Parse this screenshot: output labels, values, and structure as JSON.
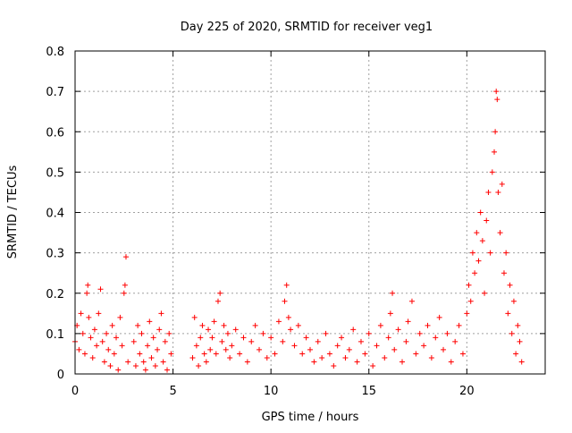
{
  "chart_data": {
    "type": "scatter",
    "title": "Day 225 of 2020, SRMTID for receiver veg1",
    "xlabel": "GPS time / hours",
    "ylabel": "SRMTID / TECUs",
    "xlim": [
      0,
      24
    ],
    "ylim": [
      0,
      0.8
    ],
    "xticks": [
      0,
      5,
      10,
      15,
      20
    ],
    "xtick_labels": [
      "0",
      "5",
      "10",
      "15",
      "20"
    ],
    "yticks": [
      0,
      0.1,
      0.2,
      0.3,
      0.4,
      0.5,
      0.6,
      0.7,
      0.8
    ],
    "ytick_labels": [
      "0",
      "0.1",
      "0.2",
      "0.3",
      "0.4",
      "0.5",
      "0.6",
      "0.7",
      "0.8"
    ],
    "grid": true,
    "marker": "plus",
    "color": "#ff0000",
    "series": [
      {
        "name": "veg1",
        "points": [
          [
            0.0,
            0.08
          ],
          [
            0.1,
            0.12
          ],
          [
            0.2,
            0.06
          ],
          [
            0.3,
            0.15
          ],
          [
            0.4,
            0.1
          ],
          [
            0.5,
            0.05
          ],
          [
            0.6,
            0.2
          ],
          [
            0.65,
            0.22
          ],
          [
            0.7,
            0.14
          ],
          [
            0.8,
            0.09
          ],
          [
            0.9,
            0.04
          ],
          [
            1.0,
            0.11
          ],
          [
            1.1,
            0.07
          ],
          [
            1.2,
            0.15
          ],
          [
            1.3,
            0.21
          ],
          [
            1.4,
            0.08
          ],
          [
            1.5,
            0.03
          ],
          [
            1.6,
            0.1
          ],
          [
            1.7,
            0.06
          ],
          [
            1.8,
            0.02
          ],
          [
            1.9,
            0.12
          ],
          [
            2.0,
            0.05
          ],
          [
            2.1,
            0.09
          ],
          [
            2.2,
            0.01
          ],
          [
            2.3,
            0.14
          ],
          [
            2.4,
            0.07
          ],
          [
            2.5,
            0.2
          ],
          [
            2.55,
            0.22
          ],
          [
            2.6,
            0.29
          ],
          [
            2.7,
            0.03
          ],
          [
            3.0,
            0.08
          ],
          [
            3.1,
            0.02
          ],
          [
            3.2,
            0.12
          ],
          [
            3.3,
            0.05
          ],
          [
            3.4,
            0.1
          ],
          [
            3.5,
            0.03
          ],
          [
            3.6,
            0.01
          ],
          [
            3.7,
            0.07
          ],
          [
            3.8,
            0.13
          ],
          [
            3.9,
            0.04
          ],
          [
            4.0,
            0.09
          ],
          [
            4.1,
            0.02
          ],
          [
            4.2,
            0.06
          ],
          [
            4.3,
            0.11
          ],
          [
            4.4,
            0.15
          ],
          [
            4.5,
            0.03
          ],
          [
            4.6,
            0.08
          ],
          [
            4.7,
            0.01
          ],
          [
            4.8,
            0.1
          ],
          [
            4.9,
            0.05
          ],
          [
            6.0,
            0.04
          ],
          [
            6.1,
            0.14
          ],
          [
            6.2,
            0.07
          ],
          [
            6.3,
            0.02
          ],
          [
            6.4,
            0.09
          ],
          [
            6.5,
            0.12
          ],
          [
            6.6,
            0.05
          ],
          [
            6.7,
            0.03
          ],
          [
            6.8,
            0.11
          ],
          [
            6.9,
            0.06
          ],
          [
            7.0,
            0.09
          ],
          [
            7.1,
            0.13
          ],
          [
            7.2,
            0.05
          ],
          [
            7.3,
            0.18
          ],
          [
            7.4,
            0.2
          ],
          [
            7.5,
            0.08
          ],
          [
            7.6,
            0.12
          ],
          [
            7.7,
            0.06
          ],
          [
            7.8,
            0.1
          ],
          [
            7.9,
            0.04
          ],
          [
            8.0,
            0.07
          ],
          [
            8.2,
            0.11
          ],
          [
            8.4,
            0.05
          ],
          [
            8.6,
            0.09
          ],
          [
            8.8,
            0.03
          ],
          [
            9.0,
            0.08
          ],
          [
            9.2,
            0.12
          ],
          [
            9.4,
            0.06
          ],
          [
            9.6,
            0.1
          ],
          [
            9.8,
            0.04
          ],
          [
            10.0,
            0.09
          ],
          [
            10.2,
            0.05
          ],
          [
            10.4,
            0.13
          ],
          [
            10.6,
            0.08
          ],
          [
            10.7,
            0.18
          ],
          [
            10.8,
            0.22
          ],
          [
            10.9,
            0.14
          ],
          [
            11.0,
            0.11
          ],
          [
            11.2,
            0.07
          ],
          [
            11.4,
            0.12
          ],
          [
            11.6,
            0.05
          ],
          [
            11.8,
            0.09
          ],
          [
            12.0,
            0.06
          ],
          [
            12.2,
            0.03
          ],
          [
            12.4,
            0.08
          ],
          [
            12.6,
            0.04
          ],
          [
            12.8,
            0.1
          ],
          [
            13.0,
            0.05
          ],
          [
            13.2,
            0.02
          ],
          [
            13.4,
            0.07
          ],
          [
            13.6,
            0.09
          ],
          [
            13.8,
            0.04
          ],
          [
            14.0,
            0.06
          ],
          [
            14.2,
            0.11
          ],
          [
            14.4,
            0.03
          ],
          [
            14.6,
            0.08
          ],
          [
            14.8,
            0.05
          ],
          [
            15.0,
            0.1
          ],
          [
            15.2,
            0.02
          ],
          [
            15.4,
            0.07
          ],
          [
            15.6,
            0.12
          ],
          [
            15.8,
            0.04
          ],
          [
            16.0,
            0.09
          ],
          [
            16.1,
            0.15
          ],
          [
            16.2,
            0.2
          ],
          [
            16.3,
            0.06
          ],
          [
            16.5,
            0.11
          ],
          [
            16.7,
            0.03
          ],
          [
            16.9,
            0.08
          ],
          [
            17.0,
            0.13
          ],
          [
            17.2,
            0.18
          ],
          [
            17.4,
            0.05
          ],
          [
            17.6,
            0.1
          ],
          [
            17.8,
            0.07
          ],
          [
            18.0,
            0.12
          ],
          [
            18.2,
            0.04
          ],
          [
            18.4,
            0.09
          ],
          [
            18.6,
            0.14
          ],
          [
            18.8,
            0.06
          ],
          [
            19.0,
            0.1
          ],
          [
            19.2,
            0.03
          ],
          [
            19.4,
            0.08
          ],
          [
            19.6,
            0.12
          ],
          [
            19.8,
            0.05
          ],
          [
            20.0,
            0.15
          ],
          [
            20.1,
            0.22
          ],
          [
            20.2,
            0.18
          ],
          [
            20.3,
            0.3
          ],
          [
            20.4,
            0.25
          ],
          [
            20.5,
            0.35
          ],
          [
            20.6,
            0.28
          ],
          [
            20.7,
            0.4
          ],
          [
            20.8,
            0.33
          ],
          [
            20.9,
            0.2
          ],
          [
            21.0,
            0.38
          ],
          [
            21.1,
            0.45
          ],
          [
            21.2,
            0.3
          ],
          [
            21.3,
            0.5
          ],
          [
            21.4,
            0.55
          ],
          [
            21.45,
            0.6
          ],
          [
            21.5,
            0.7
          ],
          [
            21.55,
            0.68
          ],
          [
            21.6,
            0.45
          ],
          [
            21.7,
            0.35
          ],
          [
            21.8,
            0.47
          ],
          [
            21.9,
            0.25
          ],
          [
            22.0,
            0.3
          ],
          [
            22.1,
            0.15
          ],
          [
            22.2,
            0.22
          ],
          [
            22.3,
            0.1
          ],
          [
            22.4,
            0.18
          ],
          [
            22.5,
            0.05
          ],
          [
            22.6,
            0.12
          ],
          [
            22.7,
            0.08
          ],
          [
            22.8,
            0.03
          ]
        ]
      }
    ]
  }
}
